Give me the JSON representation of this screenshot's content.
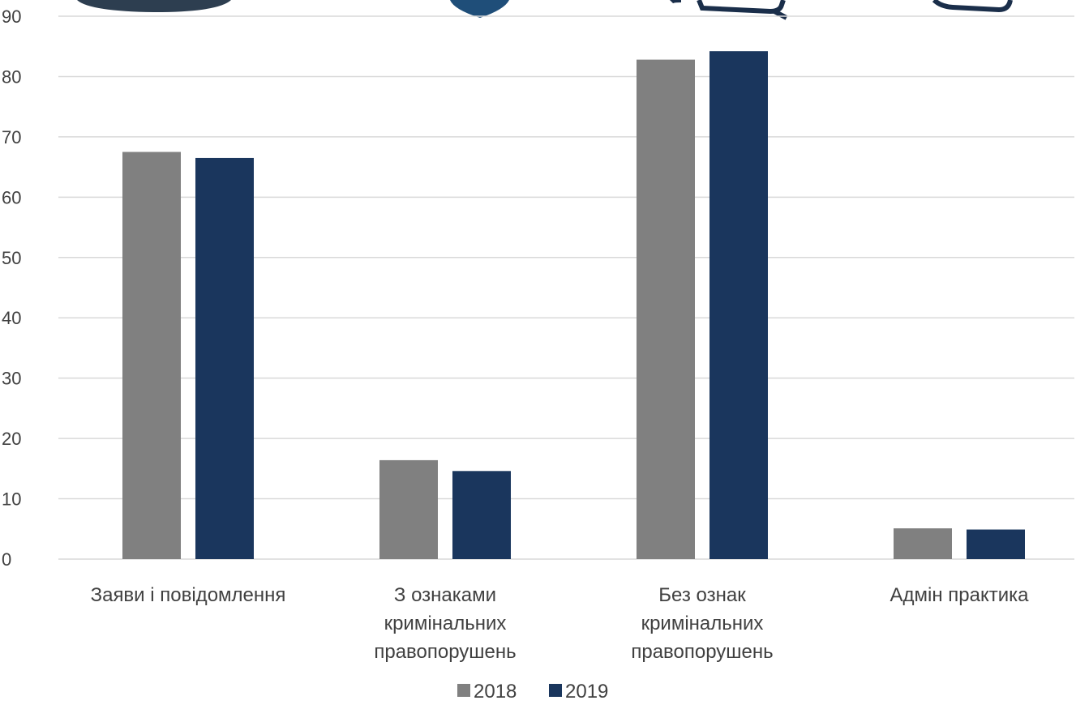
{
  "chart_data": {
    "type": "bar",
    "title": "",
    "xlabel": "",
    "ylabel": "",
    "ylim": [
      0,
      90
    ],
    "yticks": [
      0,
      10,
      20,
      30,
      40,
      50,
      60,
      70,
      80,
      90
    ],
    "grid": true,
    "legend_position": "bottom",
    "categories": [
      [
        "Заяви і повідомлення"
      ],
      [
        "З ознаками",
        "кримінальних",
        "правопорушень"
      ],
      [
        "Без ознак",
        "кримінальних",
        "правопорушень"
      ],
      [
        "Адмін практика"
      ]
    ],
    "series": [
      {
        "name": "2018",
        "color": "#808080",
        "values": [
          67.5,
          16.4,
          82.8,
          5.1
        ]
      },
      {
        "name": "2019",
        "color": "#1a365d",
        "values": [
          66.5,
          14.6,
          84.2,
          4.9
        ]
      }
    ]
  },
  "decor": {
    "icon_color_dark": "#2d3e50",
    "icon_color_blue": "#1f4e79"
  }
}
